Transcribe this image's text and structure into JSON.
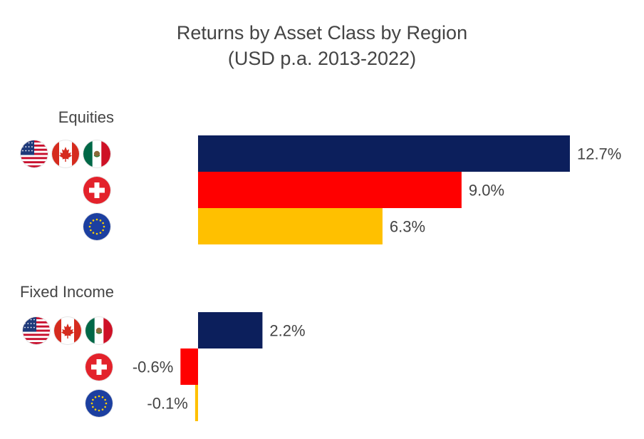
{
  "chart_data": {
    "type": "bar",
    "orientation": "horizontal",
    "title": "Returns by Asset Class by Region",
    "subtitle": "(USD p.a. 2013-2022)",
    "groups": [
      {
        "name": "Equities",
        "bars": [
          {
            "region_icons": [
              "us-flag-icon",
              "canada-flag-icon",
              "mexico-flag-icon"
            ],
            "value": 12.7,
            "label": "12.7%",
            "color": "#0c1f5c"
          },
          {
            "region_icons": [
              "switzerland-flag-icon"
            ],
            "value": 9.0,
            "label": "9.0%",
            "color": "#ff0000"
          },
          {
            "region_icons": [
              "eu-flag-icon"
            ],
            "value": 6.3,
            "label": "6.3%",
            "color": "#ffc000"
          }
        ]
      },
      {
        "name": "Fixed Income",
        "bars": [
          {
            "region_icons": [
              "us-flag-icon",
              "canada-flag-icon",
              "mexico-flag-icon"
            ],
            "value": 2.2,
            "label": "2.2%",
            "color": "#0c1f5c"
          },
          {
            "region_icons": [
              "switzerland-flag-icon"
            ],
            "value": -0.6,
            "label": "-0.6%",
            "color": "#ff0000"
          },
          {
            "region_icons": [
              "eu-flag-icon"
            ],
            "value": -0.1,
            "label": "-0.1%",
            "color": "#ffc000"
          }
        ]
      }
    ],
    "grid": false,
    "legend": "none"
  }
}
